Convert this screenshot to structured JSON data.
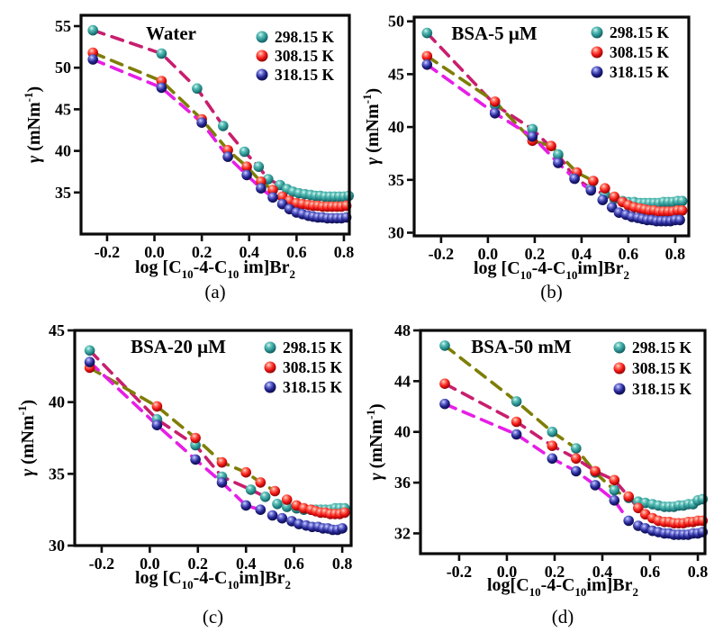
{
  "figure": {
    "legend_labels": [
      "298.15 K",
      "308.15 K",
      "318.15 K"
    ],
    "captions": {
      "a": "(a)",
      "b": "(b)",
      "c": "(c)",
      "d": "(d)"
    }
  },
  "colors": {
    "teal": "#2E9494",
    "red": "#EE1414",
    "navy": "#23238E",
    "crimson": "#C81E6E",
    "olive": "#7E7E06",
    "magenta": "#E61EE6",
    "frame": "#0a0a0a",
    "text": "#000000",
    "background": "#ffffff"
  },
  "chart_data": [
    {
      "id": "a",
      "type": "scatter",
      "title": "Water",
      "caption": "(a)",
      "xlabel_segments": [
        {
          "t": "log [C"
        },
        {
          "t": "10",
          "s": "sub"
        },
        {
          "t": "-4-C"
        },
        {
          "t": "10",
          "s": "sub"
        },
        {
          "t": " im]Br"
        },
        {
          "t": "2",
          "s": "sub"
        }
      ],
      "ylabel_segments": [
        {
          "t": "γ",
          "i": true
        },
        {
          "t": " (mNm"
        },
        {
          "t": "-1",
          "s": "sup"
        },
        {
          "t": ")"
        }
      ],
      "xlim": [
        -0.31,
        0.823
      ],
      "ylim": [
        30,
        56.3
      ],
      "xtick_labels": [
        "-0.2",
        "0.0",
        "0.2",
        "0.4",
        "0.6",
        "0.8"
      ],
      "xtick_vals": [
        -0.2,
        0.0,
        0.2,
        0.4,
        0.6,
        0.8
      ],
      "ytick_labels": [
        "35",
        "40",
        "45",
        "50",
        "55"
      ],
      "ytick_vals": [
        35,
        40,
        45,
        50,
        55
      ],
      "grid": false,
      "legend_position": "top-right",
      "series": [
        {
          "name": "298.15 K",
          "marker": "teal",
          "trend": "crimson",
          "trend_end": 7,
          "x": [
            -0.26,
            0.03,
            0.18,
            0.29,
            0.38,
            0.44,
            0.48,
            0.53,
            0.56,
            0.585,
            0.61,
            0.635,
            0.66,
            0.68,
            0.7,
            0.72,
            0.74,
            0.76,
            0.78,
            0.8,
            0.82
          ],
          "y": [
            54.5,
            51.7,
            47.5,
            43.0,
            39.9,
            38.1,
            36.6,
            35.9,
            35.4,
            35.1,
            34.9,
            34.8,
            34.7,
            34.6,
            34.6,
            34.5,
            34.5,
            34.5,
            34.5,
            34.5,
            34.6
          ]
        },
        {
          "name": "308.15 K",
          "marker": "red",
          "trend": "olive",
          "trend_end": 6,
          "x": [
            -0.26,
            0.03,
            0.2,
            0.31,
            0.39,
            0.45,
            0.5,
            0.54,
            0.57,
            0.6,
            0.625,
            0.65,
            0.67,
            0.69,
            0.71,
            0.73,
            0.75,
            0.77,
            0.79,
            0.81
          ],
          "y": [
            51.8,
            48.4,
            43.8,
            40.1,
            38.1,
            36.3,
            35.3,
            34.5,
            34.0,
            33.7,
            33.6,
            33.5,
            33.4,
            33.4,
            33.3,
            33.3,
            33.3,
            33.3,
            33.3,
            33.4
          ]
        },
        {
          "name": "318.15 K",
          "marker": "navy",
          "trend": "magenta",
          "trend_end": 6,
          "x": [
            -0.26,
            0.03,
            0.2,
            0.31,
            0.39,
            0.45,
            0.5,
            0.54,
            0.57,
            0.6,
            0.625,
            0.65,
            0.67,
            0.69,
            0.71,
            0.73,
            0.75,
            0.77,
            0.79,
            0.81
          ],
          "y": [
            51.0,
            47.6,
            43.4,
            39.3,
            37.1,
            35.5,
            34.4,
            33.6,
            33.0,
            32.6,
            32.4,
            32.2,
            32.1,
            32.0,
            32.0,
            31.9,
            31.9,
            31.9,
            31.9,
            32.0
          ]
        }
      ]
    },
    {
      "id": "b",
      "type": "scatter",
      "title": "BSA-5 μM",
      "caption": "(b)",
      "xlabel_segments": [
        {
          "t": "log [C"
        },
        {
          "t": "10",
          "s": "sub"
        },
        {
          "t": "-4-C"
        },
        {
          "t": "10",
          "s": "sub"
        },
        {
          "t": "im]Br"
        },
        {
          "t": "2",
          "s": "sub"
        }
      ],
      "ylabel_segments": [
        {
          "t": "γ",
          "i": true
        },
        {
          "t": " (mNm"
        },
        {
          "t": "-1",
          "s": "sup"
        },
        {
          "t": ")"
        }
      ],
      "xlim": [
        -0.315,
        0.858
      ],
      "ylim": [
        29.7,
        50.4
      ],
      "xtick_labels": [
        "-0.2",
        "0.0",
        "0.2",
        "0.4",
        "0.6",
        "0.8"
      ],
      "xtick_vals": [
        -0.2,
        0.0,
        0.2,
        0.4,
        0.6,
        0.8
      ],
      "ytick_labels": [
        "30",
        "35",
        "40",
        "45",
        "50"
      ],
      "ytick_vals": [
        30,
        35,
        40,
        45,
        50
      ],
      "grid": false,
      "legend_position": "top-right",
      "series": [
        {
          "name": "298.15 K",
          "marker": "teal",
          "trend": "crimson",
          "trend_end": 6,
          "x": [
            -0.26,
            0.03,
            0.19,
            0.3,
            0.37,
            0.44,
            0.5,
            0.54,
            0.575,
            0.6,
            0.625,
            0.65,
            0.67,
            0.69,
            0.71,
            0.73,
            0.75,
            0.77,
            0.79,
            0.81,
            0.83
          ],
          "y": [
            48.9,
            42.1,
            39.8,
            37.4,
            35.2,
            34.2,
            33.6,
            33.2,
            33.0,
            32.9,
            32.9,
            32.8,
            32.8,
            32.8,
            32.8,
            32.8,
            32.9,
            32.9,
            32.9,
            33.0,
            33.0
          ]
        },
        {
          "name": "308.15 K",
          "marker": "red",
          "trend": "olive",
          "trend_end": 5,
          "x": [
            -0.26,
            0.03,
            0.19,
            0.27,
            0.38,
            0.45,
            0.5,
            0.54,
            0.575,
            0.6,
            0.625,
            0.65,
            0.67,
            0.69,
            0.71,
            0.73,
            0.75,
            0.77,
            0.79,
            0.81,
            0.83
          ],
          "y": [
            46.7,
            42.4,
            38.7,
            38.2,
            35.7,
            34.9,
            34.2,
            33.4,
            32.9,
            32.6,
            32.4,
            32.3,
            32.2,
            32.1,
            32.1,
            32.0,
            32.0,
            32.0,
            32.0,
            32.1,
            32.1
          ]
        },
        {
          "name": "318.15 K",
          "marker": "navy",
          "trend": "magenta",
          "trend_end": 5,
          "x": [
            -0.26,
            0.03,
            0.19,
            0.3,
            0.37,
            0.44,
            0.49,
            0.53,
            0.56,
            0.59,
            0.615,
            0.64,
            0.66,
            0.68,
            0.7,
            0.72,
            0.74,
            0.76,
            0.78,
            0.8,
            0.82
          ],
          "y": [
            45.9,
            41.3,
            39.1,
            36.6,
            35.1,
            34.0,
            33.1,
            32.4,
            31.9,
            31.7,
            31.5,
            31.4,
            31.3,
            31.2,
            31.2,
            31.1,
            31.1,
            31.1,
            31.1,
            31.2,
            31.2
          ]
        }
      ]
    },
    {
      "id": "c",
      "type": "scatter",
      "title": "BSA-20 μM",
      "caption": "(c)",
      "xlabel_segments": [
        {
          "t": "log [C"
        },
        {
          "t": "10",
          "s": "sub"
        },
        {
          "t": "-4-C"
        },
        {
          "t": "10",
          "s": "sub"
        },
        {
          "t": "im]Br"
        },
        {
          "t": "2",
          "s": "sub"
        }
      ],
      "ylabel_segments": [
        {
          "t": "γ",
          "i": true
        },
        {
          "t": " (mNm"
        },
        {
          "t": "-1",
          "s": "sup"
        },
        {
          "t": ")"
        }
      ],
      "xlim": [
        -0.312,
        0.837
      ],
      "ylim": [
        30,
        45
      ],
      "xtick_labels": [
        "-0.2",
        "0.0",
        "0.2",
        "0.4",
        "0.6",
        "0.8"
      ],
      "xtick_vals": [
        -0.2,
        0.0,
        0.2,
        0.4,
        0.6,
        0.8
      ],
      "ytick_labels": [
        "30",
        "35",
        "40",
        "45"
      ],
      "ytick_vals": [
        30,
        35,
        40,
        45
      ],
      "grid": false,
      "legend_position": "top-right",
      "series": [
        {
          "name": "298.15 K",
          "marker": "teal",
          "trend": "crimson",
          "trend_end": 5,
          "x": [
            -0.25,
            0.03,
            0.19,
            0.3,
            0.42,
            0.48,
            0.53,
            0.57,
            0.61,
            0.64,
            0.67,
            0.69,
            0.71,
            0.73,
            0.75,
            0.77,
            0.79,
            0.81
          ],
          "y": [
            43.6,
            38.8,
            37.0,
            34.8,
            33.9,
            33.4,
            32.9,
            32.7,
            32.6,
            32.5,
            32.5,
            32.5,
            32.5,
            32.5,
            32.5,
            32.6,
            32.6,
            32.6
          ]
        },
        {
          "name": "308.15 K",
          "marker": "red",
          "trend": "olive",
          "trend_end": 6,
          "x": [
            -0.25,
            0.03,
            0.19,
            0.3,
            0.4,
            0.46,
            0.52,
            0.57,
            0.61,
            0.64,
            0.67,
            0.69,
            0.71,
            0.73,
            0.75,
            0.77,
            0.79,
            0.81
          ],
          "y": [
            42.4,
            39.7,
            37.5,
            35.8,
            35.1,
            34.4,
            33.8,
            33.2,
            32.8,
            32.6,
            32.5,
            32.4,
            32.3,
            32.3,
            32.2,
            32.2,
            32.2,
            32.3
          ]
        },
        {
          "name": "318.15 K",
          "marker": "navy",
          "trend": "magenta",
          "trend_end": 5,
          "x": [
            -0.25,
            0.03,
            0.19,
            0.3,
            0.4,
            0.46,
            0.51,
            0.55,
            0.59,
            0.62,
            0.65,
            0.675,
            0.7,
            0.72,
            0.74,
            0.76,
            0.78,
            0.8
          ],
          "y": [
            42.8,
            38.4,
            36.0,
            34.4,
            32.8,
            32.5,
            32.1,
            31.9,
            31.7,
            31.5,
            31.4,
            31.3,
            31.3,
            31.2,
            31.2,
            31.1,
            31.1,
            31.2
          ]
        }
      ]
    },
    {
      "id": "d",
      "type": "scatter",
      "title": "BSA-50 mM",
      "caption": "(d)",
      "xlabel_segments": [
        {
          "t": "log[C"
        },
        {
          "t": "10",
          "s": "sub"
        },
        {
          "t": "-4-C"
        },
        {
          "t": "10",
          "s": "sub"
        },
        {
          "t": "im]Br"
        },
        {
          "t": "2",
          "s": "sub"
        }
      ],
      "ylabel_segments": [
        {
          "t": "γ",
          "i": true
        },
        {
          "t": " (mNm"
        },
        {
          "t": "-1",
          "s": "sup"
        },
        {
          "t": ")"
        }
      ],
      "xlim": [
        -0.362,
        0.83
      ],
      "ylim": [
        30.4,
        48
      ],
      "xtick_labels": [
        "-0.2",
        "0.0",
        "0.2",
        "0.4",
        "0.6",
        "0.8"
      ],
      "xtick_vals": [
        -0.2,
        0.0,
        0.2,
        0.4,
        0.6,
        0.8
      ],
      "ytick_labels": [
        "32",
        "36",
        "40",
        "44",
        "48"
      ],
      "ytick_vals": [
        32,
        36,
        40,
        44,
        48
      ],
      "grid": false,
      "legend_position": "top-right",
      "series": [
        {
          "name": "298.15 K",
          "marker": "teal",
          "trend": "olive",
          "trend_end": 6,
          "x": [
            -0.26,
            0.04,
            0.19,
            0.29,
            0.37,
            0.45,
            0.51,
            0.55,
            0.58,
            0.61,
            0.635,
            0.66,
            0.68,
            0.7,
            0.72,
            0.74,
            0.76,
            0.78,
            0.8,
            0.82
          ],
          "y": [
            46.8,
            42.4,
            40.0,
            38.7,
            36.8,
            35.4,
            34.8,
            34.5,
            34.4,
            34.3,
            34.2,
            34.1,
            34.1,
            34.1,
            34.2,
            34.2,
            34.3,
            34.3,
            34.6,
            34.7
          ]
        },
        {
          "name": "308.15 K",
          "marker": "red",
          "trend": "crimson",
          "trend_end": 7,
          "x": [
            -0.26,
            0.04,
            0.19,
            0.29,
            0.37,
            0.45,
            0.51,
            0.55,
            0.58,
            0.61,
            0.635,
            0.66,
            0.68,
            0.7,
            0.72,
            0.74,
            0.76,
            0.78,
            0.8,
            0.82
          ],
          "y": [
            43.8,
            40.8,
            38.9,
            37.9,
            36.9,
            36.2,
            34.9,
            34.0,
            33.5,
            33.2,
            33.0,
            32.9,
            32.9,
            32.8,
            32.8,
            32.8,
            32.9,
            32.9,
            33.0,
            33.0
          ]
        },
        {
          "name": "318.15 K",
          "marker": "navy",
          "trend": "magenta",
          "trend_end": 6,
          "x": [
            -0.26,
            0.04,
            0.19,
            0.29,
            0.37,
            0.45,
            0.51,
            0.55,
            0.58,
            0.61,
            0.635,
            0.66,
            0.68,
            0.7,
            0.72,
            0.74,
            0.76,
            0.78,
            0.8,
            0.82
          ],
          "y": [
            42.2,
            39.8,
            37.9,
            36.9,
            35.8,
            34.6,
            33.0,
            32.6,
            32.4,
            32.2,
            32.1,
            32.0,
            32.0,
            31.9,
            31.9,
            31.9,
            31.9,
            32.0,
            32.0,
            32.1
          ]
        }
      ]
    }
  ]
}
